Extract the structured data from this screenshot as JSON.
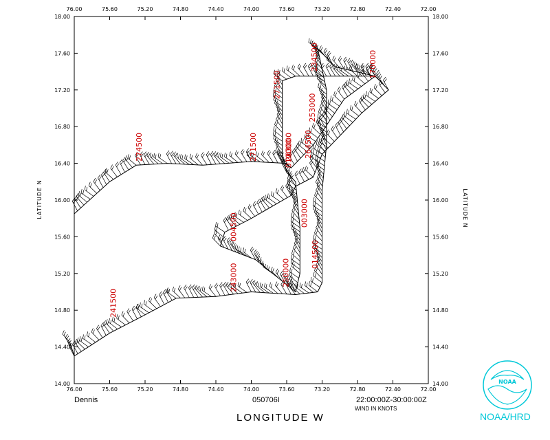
{
  "chart_data": {
    "type": "scatter",
    "title": "",
    "xlabel": "LONGITUDE  W",
    "ylabel_left": "LATITUDE  N",
    "ylabel_right": "LATITUDE  N",
    "xlim": [
      76.0,
      72.0
    ],
    "ylim": [
      14.0,
      18.0
    ],
    "x_tick_labels": [
      "76.00",
      "75.60",
      "75.20",
      "74.80",
      "74.40",
      "74.00",
      "73.60",
      "73.20",
      "72.80",
      "72.40",
      "72.00"
    ],
    "y_tick_labels": [
      "14.00",
      "14.40",
      "14.80",
      "15.20",
      "15.60",
      "16.00",
      "16.40",
      "16.80",
      "17.20",
      "17.60",
      "18.00"
    ],
    "grid": false,
    "track_color": "#000000",
    "annotation_color": "#cc0000",
    "flight_track": [
      {
        "lon": 76.05,
        "lat": 14.45
      },
      {
        "lon": 76.0,
        "lat": 14.3
      },
      {
        "lon": 75.6,
        "lat": 14.55
      },
      {
        "lon": 75.2,
        "lat": 14.75
      },
      {
        "lon": 74.85,
        "lat": 14.93
      },
      {
        "lon": 74.4,
        "lat": 14.95
      },
      {
        "lon": 74.0,
        "lat": 15.0
      },
      {
        "lon": 73.5,
        "lat": 14.97
      },
      {
        "lon": 73.25,
        "lat": 15.0
      },
      {
        "lon": 73.2,
        "lat": 15.1
      },
      {
        "lon": 73.2,
        "lat": 16.1
      },
      {
        "lon": 73.15,
        "lat": 16.6
      },
      {
        "lon": 73.15,
        "lat": 17.2
      },
      {
        "lon": 73.25,
        "lat": 17.65
      },
      {
        "lon": 73.05,
        "lat": 17.45
      },
      {
        "lon": 72.6,
        "lat": 17.35
      },
      {
        "lon": 72.45,
        "lat": 17.2
      },
      {
        "lon": 72.75,
        "lat": 16.95
      },
      {
        "lon": 73.2,
        "lat": 16.5
      },
      {
        "lon": 73.3,
        "lat": 16.25
      },
      {
        "lon": 73.5,
        "lat": 16.15
      },
      {
        "lon": 73.55,
        "lat": 16.05
      },
      {
        "lon": 74.0,
        "lat": 15.8
      },
      {
        "lon": 74.3,
        "lat": 15.65
      },
      {
        "lon": 74.35,
        "lat": 15.5
      },
      {
        "lon": 73.95,
        "lat": 15.35
      },
      {
        "lon": 73.5,
        "lat": 15.0
      },
      {
        "lon": 73.45,
        "lat": 15.2
      },
      {
        "lon": 73.45,
        "lat": 15.7
      },
      {
        "lon": 73.5,
        "lat": 16.2
      },
      {
        "lon": 73.6,
        "lat": 16.3
      },
      {
        "lon": 73.65,
        "lat": 16.5
      },
      {
        "lon": 73.65,
        "lat": 17.3
      },
      {
        "lon": 73.5,
        "lat": 17.35
      },
      {
        "lon": 73.2,
        "lat": 17.35
      },
      {
        "lon": 72.6,
        "lat": 17.35
      },
      {
        "lon": 72.95,
        "lat": 17.1
      },
      {
        "lon": 73.3,
        "lat": 16.6
      },
      {
        "lon": 73.55,
        "lat": 16.35
      },
      {
        "lon": 73.6,
        "lat": 16.4
      },
      {
        "lon": 74.0,
        "lat": 16.42
      },
      {
        "lon": 74.55,
        "lat": 16.38
      },
      {
        "lon": 74.95,
        "lat": 16.4
      },
      {
        "lon": 75.3,
        "lat": 16.38
      },
      {
        "lon": 75.6,
        "lat": 16.2
      },
      {
        "lon": 76.0,
        "lat": 15.85
      }
    ],
    "time_labels": [
      {
        "text": "241500",
        "lon": 75.53,
        "lat": 14.72
      },
      {
        "text": "243000",
        "lon": 74.17,
        "lat": 15.0
      },
      {
        "text": "250000",
        "lon": 73.58,
        "lat": 15.05
      },
      {
        "text": "014500",
        "lon": 73.25,
        "lat": 15.25
      },
      {
        "text": "004500",
        "lon": 74.17,
        "lat": 15.55
      },
      {
        "text": "003000",
        "lon": 73.37,
        "lat": 15.7
      },
      {
        "text": "271500",
        "lon": 73.95,
        "lat": 16.42
      },
      {
        "text": "274500",
        "lon": 75.24,
        "lat": 16.42
      },
      {
        "text": "263000",
        "lon": 73.55,
        "lat": 16.42
      },
      {
        "text": "010000",
        "lon": 73.55,
        "lat": 16.35
      },
      {
        "text": "264500",
        "lon": 73.33,
        "lat": 16.45
      },
      {
        "text": "253000",
        "lon": 73.28,
        "lat": 16.85
      },
      {
        "text": "271500",
        "lon": 73.68,
        "lat": 17.1
      },
      {
        "text": "234500",
        "lon": 73.26,
        "lat": 17.4
      },
      {
        "text": "170000",
        "lon": 72.6,
        "lat": 17.32
      }
    ]
  },
  "footer": {
    "storm_name": "Dennis",
    "flight_id": "050706I",
    "time_range": "22:00:00Z-30:00:00Z",
    "wind_units": "WIND IN KNOTS",
    "agency": "NOAA/HRD",
    "logo_text": "NOAA"
  },
  "colors": {
    "logo": "#00c8d8",
    "axes": "#000000"
  }
}
